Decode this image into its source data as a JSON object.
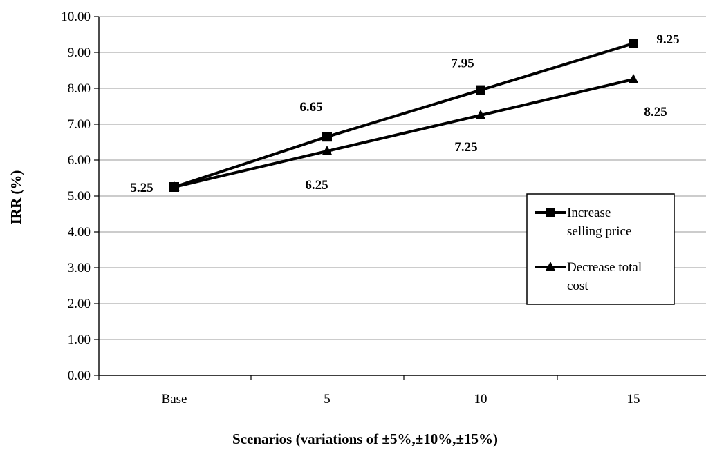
{
  "chart_data": {
    "type": "line",
    "categories": [
      "Base",
      "5",
      "10",
      "15"
    ],
    "series": [
      {
        "name": "Increase selling price",
        "legend_lines": [
          "Increase",
          "selling price"
        ],
        "marker": "square",
        "values": [
          5.25,
          6.65,
          7.95,
          9.25
        ],
        "labels": [
          "5.25",
          "6.65",
          "7.95",
          "9.25"
        ]
      },
      {
        "name": "Decrease total cost",
        "legend_lines": [
          "Decrease total",
          "cost"
        ],
        "marker": "triangle",
        "values": [
          5.25,
          6.25,
          7.25,
          8.25
        ],
        "labels": [
          "",
          "6.25",
          "7.25",
          "8.25"
        ]
      }
    ],
    "title": "",
    "xlabel": "Scenarios (variations of ±5%,±10%,±15%)",
    "ylabel": "IRR (%)",
    "ylim": [
      0,
      10
    ],
    "yticks": [
      "0.00",
      "1.00",
      "2.00",
      "3.00",
      "4.00",
      "5.00",
      "6.00",
      "7.00",
      "8.00",
      "9.00",
      "10.00"
    ],
    "grid": true,
    "legend_position": "right",
    "line_color": "#000000",
    "grid_color": "#999999"
  }
}
